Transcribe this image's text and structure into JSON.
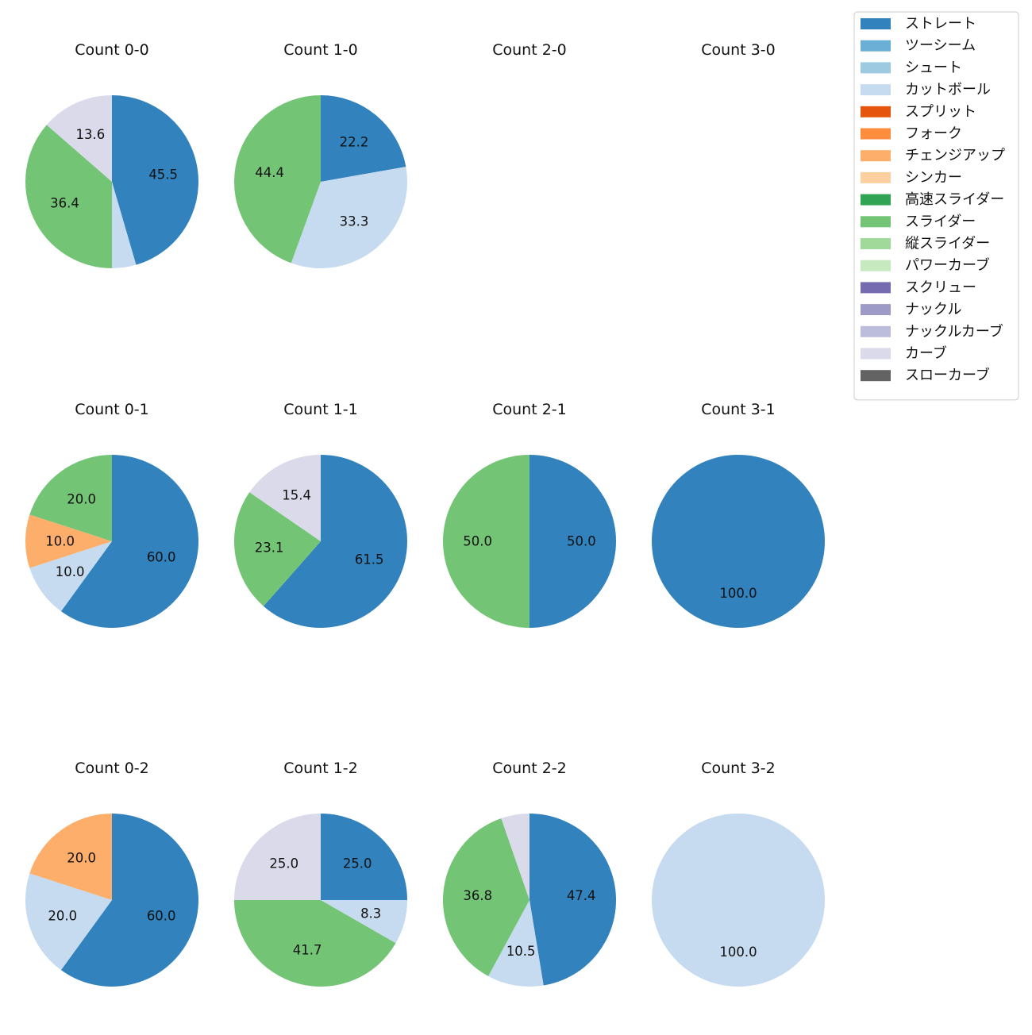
{
  "legend": {
    "entries": [
      {
        "name": "ストレート",
        "color": "#3182bd"
      },
      {
        "name": "ツーシーム",
        "color": "#6baed6"
      },
      {
        "name": "シュート",
        "color": "#9ecae1"
      },
      {
        "name": "カットボール",
        "color": "#c6dbef"
      },
      {
        "name": "スプリット",
        "color": "#e6550d"
      },
      {
        "name": "フォーク",
        "color": "#fd8d3c"
      },
      {
        "name": "チェンジアップ",
        "color": "#fdae6b"
      },
      {
        "name": "シンカー",
        "color": "#fdd0a2"
      },
      {
        "name": "高速スライダー",
        "color": "#31a354"
      },
      {
        "name": "スライダー",
        "color": "#74c476"
      },
      {
        "name": "縦スライダー",
        "color": "#a1d99b"
      },
      {
        "name": "パワーカーブ",
        "color": "#c7e9c0"
      },
      {
        "name": "スクリュー",
        "color": "#756bb1"
      },
      {
        "name": "ナックル",
        "color": "#9e9ac8"
      },
      {
        "name": "ナックルカーブ",
        "color": "#bcbddc"
      },
      {
        "name": "カーブ",
        "color": "#dadaeb"
      },
      {
        "name": "スローカーブ",
        "color": "#636363"
      }
    ]
  },
  "chart_data": [
    {
      "type": "pie",
      "title": "Count 0-0",
      "slices": [
        {
          "pitch": "ストレート",
          "value": 45.5,
          "label": "45.5"
        },
        {
          "pitch": "カットボール",
          "value": 4.5,
          "label": ""
        },
        {
          "pitch": "スライダー",
          "value": 36.4,
          "label": "36.4"
        },
        {
          "pitch": "カーブ",
          "value": 13.6,
          "label": "13.6"
        }
      ]
    },
    {
      "type": "pie",
      "title": "Count 1-0",
      "slices": [
        {
          "pitch": "ストレート",
          "value": 22.2,
          "label": "22.2"
        },
        {
          "pitch": "カットボール",
          "value": 33.3,
          "label": "33.3"
        },
        {
          "pitch": "スライダー",
          "value": 44.4,
          "label": "44.4"
        }
      ]
    },
    {
      "type": "pie",
      "title": "Count 2-0",
      "slices": []
    },
    {
      "type": "pie",
      "title": "Count 3-0",
      "slices": []
    },
    {
      "type": "pie",
      "title": "Count 0-1",
      "slices": [
        {
          "pitch": "ストレート",
          "value": 60.0,
          "label": "60.0"
        },
        {
          "pitch": "カットボール",
          "value": 10.0,
          "label": "10.0"
        },
        {
          "pitch": "チェンジアップ",
          "value": 10.0,
          "label": "10.0"
        },
        {
          "pitch": "スライダー",
          "value": 20.0,
          "label": "20.0"
        }
      ]
    },
    {
      "type": "pie",
      "title": "Count 1-1",
      "slices": [
        {
          "pitch": "ストレート",
          "value": 61.5,
          "label": "61.5"
        },
        {
          "pitch": "スライダー",
          "value": 23.1,
          "label": "23.1"
        },
        {
          "pitch": "カーブ",
          "value": 15.4,
          "label": "15.4"
        }
      ]
    },
    {
      "type": "pie",
      "title": "Count 2-1",
      "slices": [
        {
          "pitch": "ストレート",
          "value": 50.0,
          "label": "50.0"
        },
        {
          "pitch": "スライダー",
          "value": 50.0,
          "label": "50.0"
        }
      ]
    },
    {
      "type": "pie",
      "title": "Count 3-1",
      "slices": [
        {
          "pitch": "ストレート",
          "value": 100.0,
          "label": "100.0"
        }
      ]
    },
    {
      "type": "pie",
      "title": "Count 0-2",
      "slices": [
        {
          "pitch": "ストレート",
          "value": 60.0,
          "label": "60.0"
        },
        {
          "pitch": "カットボール",
          "value": 20.0,
          "label": "20.0"
        },
        {
          "pitch": "チェンジアップ",
          "value": 20.0,
          "label": "20.0"
        }
      ]
    },
    {
      "type": "pie",
      "title": "Count 1-2",
      "slices": [
        {
          "pitch": "ストレート",
          "value": 25.0,
          "label": "25.0"
        },
        {
          "pitch": "カットボール",
          "value": 8.3,
          "label": "8.3"
        },
        {
          "pitch": "スライダー",
          "value": 41.7,
          "label": "41.7"
        },
        {
          "pitch": "カーブ",
          "value": 25.0,
          "label": "25.0"
        }
      ]
    },
    {
      "type": "pie",
      "title": "Count 2-2",
      "slices": [
        {
          "pitch": "ストレート",
          "value": 47.4,
          "label": "47.4"
        },
        {
          "pitch": "カットボール",
          "value": 10.5,
          "label": "10.5"
        },
        {
          "pitch": "スライダー",
          "value": 36.8,
          "label": "36.8"
        },
        {
          "pitch": "カーブ",
          "value": 5.3,
          "label": ""
        }
      ]
    },
    {
      "type": "pie",
      "title": "Count 3-2",
      "slices": [
        {
          "pitch": "カットボール",
          "value": 100.0,
          "label": "100.0"
        }
      ]
    }
  ]
}
